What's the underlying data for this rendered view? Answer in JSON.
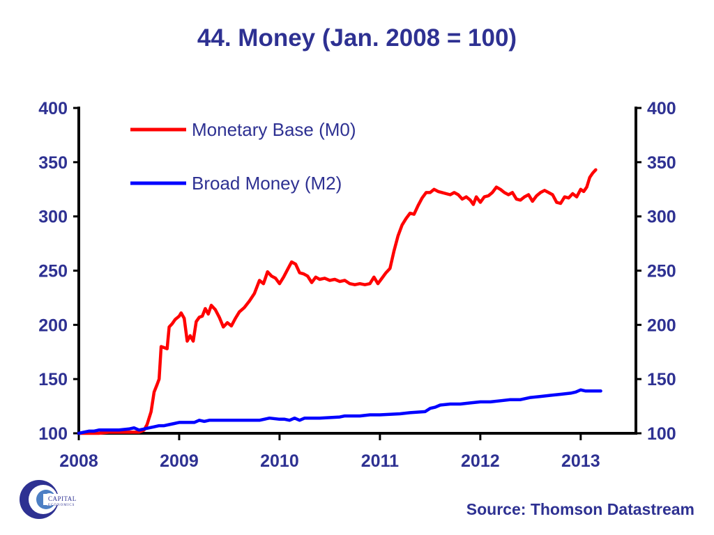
{
  "chart_data": {
    "type": "line",
    "title": "44. Money (Jan. 2008 = 100)",
    "x_tick_labels": [
      "2008",
      "2009",
      "2010",
      "2011",
      "2012",
      "2013"
    ],
    "x_ticks": [
      2008,
      2009,
      2010,
      2011,
      2012,
      2013
    ],
    "xlim": [
      2008,
      2013.55
    ],
    "ylim": [
      100,
      400
    ],
    "y_ticks": [
      100,
      150,
      200,
      250,
      300,
      350,
      400
    ],
    "y_tick_labels": [
      "100",
      "150",
      "200",
      "250",
      "300",
      "350",
      "400"
    ],
    "y_axis_right": true,
    "grid": false,
    "legend_placement": "top-left",
    "series": [
      {
        "name": "Monetary Base (M0)",
        "color": "#ff0000",
        "points": [
          [
            2008.0,
            100
          ],
          [
            2008.1,
            100
          ],
          [
            2008.2,
            100
          ],
          [
            2008.3,
            101
          ],
          [
            2008.4,
            101
          ],
          [
            2008.5,
            101
          ],
          [
            2008.6,
            101
          ],
          [
            2008.65,
            103
          ],
          [
            2008.68,
            108
          ],
          [
            2008.72,
            120
          ],
          [
            2008.75,
            138
          ],
          [
            2008.78,
            145
          ],
          [
            2008.8,
            150
          ],
          [
            2008.82,
            180
          ],
          [
            2008.85,
            179
          ],
          [
            2008.88,
            178
          ],
          [
            2008.9,
            198
          ],
          [
            2008.93,
            201
          ],
          [
            2008.96,
            205
          ],
          [
            2009.0,
            208
          ],
          [
            2009.02,
            211
          ],
          [
            2009.05,
            206
          ],
          [
            2009.08,
            185
          ],
          [
            2009.11,
            190
          ],
          [
            2009.14,
            185
          ],
          [
            2009.17,
            203
          ],
          [
            2009.2,
            207
          ],
          [
            2009.23,
            208
          ],
          [
            2009.26,
            215
          ],
          [
            2009.29,
            210
          ],
          [
            2009.32,
            218
          ],
          [
            2009.36,
            214
          ],
          [
            2009.4,
            207
          ],
          [
            2009.44,
            198
          ],
          [
            2009.48,
            202
          ],
          [
            2009.52,
            199
          ],
          [
            2009.56,
            206
          ],
          [
            2009.6,
            212
          ],
          [
            2009.65,
            216
          ],
          [
            2009.7,
            222
          ],
          [
            2009.75,
            229
          ],
          [
            2009.8,
            241
          ],
          [
            2009.84,
            238
          ],
          [
            2009.88,
            249
          ],
          [
            2009.92,
            245
          ],
          [
            2009.96,
            243
          ],
          [
            2010.0,
            238
          ],
          [
            2010.04,
            244
          ],
          [
            2010.08,
            251
          ],
          [
            2010.12,
            258
          ],
          [
            2010.16,
            256
          ],
          [
            2010.2,
            248
          ],
          [
            2010.24,
            247
          ],
          [
            2010.28,
            245
          ],
          [
            2010.32,
            239
          ],
          [
            2010.36,
            244
          ],
          [
            2010.4,
            242
          ],
          [
            2010.45,
            243
          ],
          [
            2010.5,
            241
          ],
          [
            2010.55,
            242
          ],
          [
            2010.6,
            240
          ],
          [
            2010.65,
            241
          ],
          [
            2010.7,
            238
          ],
          [
            2010.75,
            237
          ],
          [
            2010.8,
            238
          ],
          [
            2010.85,
            237
          ],
          [
            2010.9,
            238
          ],
          [
            2010.94,
            244
          ],
          [
            2010.98,
            238
          ],
          [
            2011.02,
            243
          ],
          [
            2011.06,
            248
          ],
          [
            2011.1,
            252
          ],
          [
            2011.14,
            268
          ],
          [
            2011.18,
            282
          ],
          [
            2011.22,
            292
          ],
          [
            2011.26,
            298
          ],
          [
            2011.3,
            303
          ],
          [
            2011.34,
            302
          ],
          [
            2011.38,
            310
          ],
          [
            2011.42,
            317
          ],
          [
            2011.46,
            322
          ],
          [
            2011.5,
            322
          ],
          [
            2011.54,
            325
          ],
          [
            2011.58,
            323
          ],
          [
            2011.62,
            322
          ],
          [
            2011.66,
            321
          ],
          [
            2011.7,
            320
          ],
          [
            2011.74,
            322
          ],
          [
            2011.78,
            320
          ],
          [
            2011.82,
            316
          ],
          [
            2011.86,
            318
          ],
          [
            2011.9,
            315
          ],
          [
            2011.93,
            311
          ],
          [
            2011.96,
            318
          ],
          [
            2012.0,
            313
          ],
          [
            2012.04,
            318
          ],
          [
            2012.08,
            319
          ],
          [
            2012.12,
            322
          ],
          [
            2012.16,
            327
          ],
          [
            2012.2,
            325
          ],
          [
            2012.24,
            322
          ],
          [
            2012.28,
            320
          ],
          [
            2012.32,
            322
          ],
          [
            2012.36,
            316
          ],
          [
            2012.4,
            315
          ],
          [
            2012.44,
            318
          ],
          [
            2012.48,
            320
          ],
          [
            2012.52,
            314
          ],
          [
            2012.56,
            319
          ],
          [
            2012.6,
            322
          ],
          [
            2012.64,
            324
          ],
          [
            2012.68,
            322
          ],
          [
            2012.72,
            320
          ],
          [
            2012.76,
            313
          ],
          [
            2012.8,
            312
          ],
          [
            2012.84,
            318
          ],
          [
            2012.88,
            317
          ],
          [
            2012.92,
            321
          ],
          [
            2012.96,
            318
          ],
          [
            2013.0,
            325
          ],
          [
            2013.03,
            323
          ],
          [
            2013.06,
            327
          ],
          [
            2013.09,
            336
          ],
          [
            2013.12,
            340
          ],
          [
            2013.15,
            343
          ]
        ]
      },
      {
        "name": "Broad Money (M2)",
        "color": "#0000ff",
        "points": [
          [
            2008.0,
            100
          ],
          [
            2008.05,
            101
          ],
          [
            2008.1,
            102
          ],
          [
            2008.15,
            102
          ],
          [
            2008.2,
            103
          ],
          [
            2008.3,
            103
          ],
          [
            2008.4,
            103
          ],
          [
            2008.5,
            104
          ],
          [
            2008.55,
            105
          ],
          [
            2008.6,
            103
          ],
          [
            2008.65,
            104
          ],
          [
            2008.7,
            105
          ],
          [
            2008.75,
            106
          ],
          [
            2008.8,
            107
          ],
          [
            2008.85,
            107
          ],
          [
            2008.9,
            108
          ],
          [
            2008.95,
            109
          ],
          [
            2009.0,
            110
          ],
          [
            2009.1,
            110
          ],
          [
            2009.15,
            110
          ],
          [
            2009.2,
            112
          ],
          [
            2009.25,
            111
          ],
          [
            2009.3,
            112
          ],
          [
            2009.4,
            112
          ],
          [
            2009.5,
            112
          ],
          [
            2009.6,
            112
          ],
          [
            2009.7,
            112
          ],
          [
            2009.8,
            112
          ],
          [
            2009.9,
            114
          ],
          [
            2010.0,
            113
          ],
          [
            2010.05,
            113
          ],
          [
            2010.1,
            112
          ],
          [
            2010.15,
            114
          ],
          [
            2010.2,
            112
          ],
          [
            2010.25,
            114
          ],
          [
            2010.4,
            114
          ],
          [
            2010.6,
            115
          ],
          [
            2010.65,
            116
          ],
          [
            2010.8,
            116
          ],
          [
            2010.9,
            117
          ],
          [
            2011.0,
            117
          ],
          [
            2011.2,
            118
          ],
          [
            2011.3,
            119
          ],
          [
            2011.45,
            120
          ],
          [
            2011.5,
            123
          ],
          [
            2011.55,
            124
          ],
          [
            2011.6,
            126
          ],
          [
            2011.7,
            127
          ],
          [
            2011.8,
            127
          ],
          [
            2011.9,
            128
          ],
          [
            2012.0,
            129
          ],
          [
            2012.1,
            129
          ],
          [
            2012.2,
            130
          ],
          [
            2012.3,
            131
          ],
          [
            2012.4,
            131
          ],
          [
            2012.5,
            133
          ],
          [
            2012.6,
            134
          ],
          [
            2012.7,
            135
          ],
          [
            2012.8,
            136
          ],
          [
            2012.9,
            137
          ],
          [
            2012.95,
            138
          ],
          [
            2013.0,
            140
          ],
          [
            2013.05,
            139
          ],
          [
            2013.1,
            139
          ],
          [
            2013.2,
            139
          ]
        ]
      }
    ]
  },
  "footer": {
    "source": "Source: Thomson Datastream",
    "logo_name": "CAPITAL",
    "logo_sub": "ECONOMICS",
    "logo_icon": "capital-economics-logo"
  }
}
